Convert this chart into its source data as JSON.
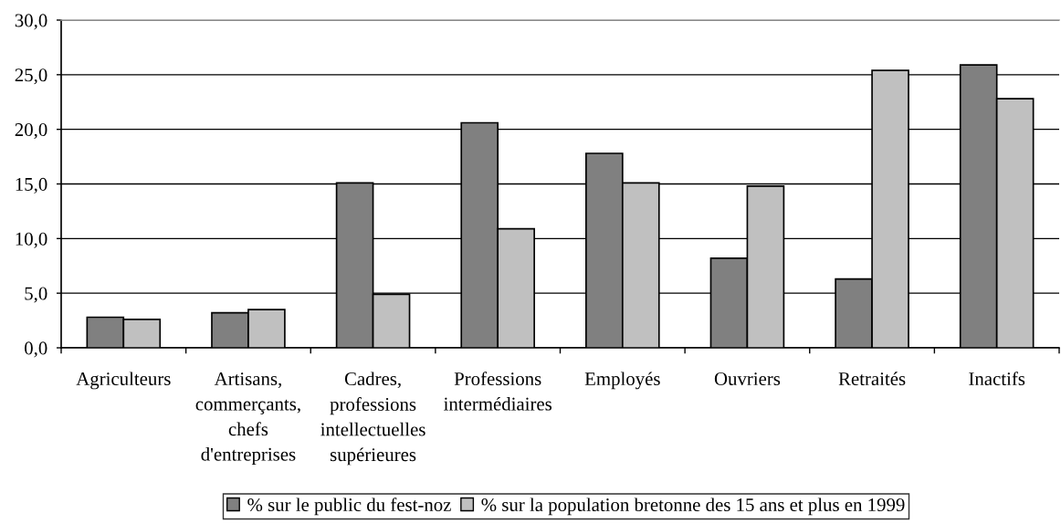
{
  "chart_data": {
    "type": "bar",
    "categories": [
      "Agriculteurs",
      "Artisans, commerçants, chefs d'entreprises",
      "Cadres, professions intellectuelles supérieures",
      "Professions intermédiaires",
      "Employés",
      "Ouvriers",
      "Retraités",
      "Inactifs"
    ],
    "series": [
      {
        "name": "% sur le public du fest-noz",
        "color": "#808080",
        "values": [
          2.8,
          3.2,
          15.1,
          20.6,
          17.8,
          8.2,
          6.3,
          25.9
        ]
      },
      {
        "name": "% sur la population bretonne des 15 ans et plus en 1999",
        "color": "#c0c0c0",
        "values": [
          2.6,
          3.5,
          4.9,
          10.9,
          15.1,
          14.8,
          25.4,
          22.8
        ]
      }
    ],
    "ylim": [
      0,
      30
    ],
    "yticks": [
      {
        "value": 0,
        "label": "0,0"
      },
      {
        "value": 5,
        "label": "5,0"
      },
      {
        "value": 10,
        "label": "10,0"
      },
      {
        "value": 15,
        "label": "15,0"
      },
      {
        "value": 20,
        "label": "20,0"
      },
      {
        "value": 25,
        "label": "25,0"
      },
      {
        "value": 30,
        "label": "30,0"
      }
    ],
    "grid": "y",
    "legend": "bottom"
  }
}
